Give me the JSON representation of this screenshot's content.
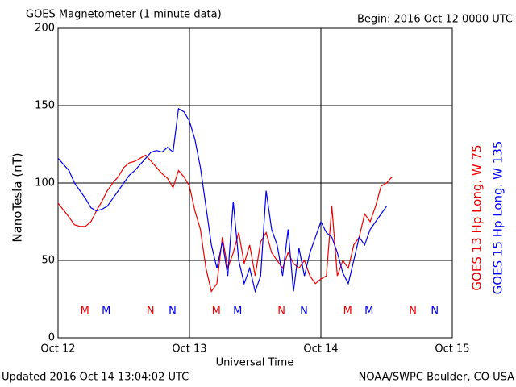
{
  "chart_data": {
    "type": "line",
    "title": "GOES Magnetometer (1 minute data)",
    "subtitle": "Begin:  2016 Oct 12 0000 UTC",
    "y_label": "NanoTesla (nT)",
    "x_label": "Universal Time",
    "footer_left": "Updated 2016 Oct 14 13:04:02 UTC",
    "footer_right": "NOAA/SWPC Boulder, CO USA",
    "xlim": [
      0,
      72
    ],
    "xticks": [
      {
        "value": 0,
        "label": "Oct 12"
      },
      {
        "value": 24,
        "label": "Oct 13"
      },
      {
        "value": 48,
        "label": "Oct 14"
      },
      {
        "value": 72,
        "label": "Oct 15"
      }
    ],
    "ylim": [
      0,
      200
    ],
    "yticks": [
      0,
      50,
      100,
      150,
      200
    ],
    "grid": true,
    "series": [
      {
        "name": "GOES 13 Hp  Long. W 75",
        "color": "#ee0000",
        "x": [
          0,
          2,
          3,
          4,
          5,
          6,
          7,
          8,
          9,
          10,
          11,
          12,
          13,
          14,
          15,
          16,
          17,
          18,
          19,
          20,
          21,
          22,
          23,
          24,
          25,
          26,
          27,
          28,
          29,
          30,
          31,
          32,
          33,
          34,
          35,
          36,
          37,
          38,
          39,
          40,
          41,
          42,
          43,
          44,
          45,
          46,
          47,
          48,
          49,
          50,
          51,
          52,
          53,
          54,
          55,
          56,
          57,
          58,
          59,
          60,
          61
        ],
        "values": [
          87,
          78,
          73,
          72,
          72,
          75,
          82,
          88,
          95,
          100,
          104,
          110,
          113,
          114,
          116,
          118,
          114,
          110,
          106,
          103,
          97,
          108,
          104,
          98,
          82,
          70,
          45,
          30,
          35,
          65,
          45,
          55,
          68,
          48,
          60,
          40,
          62,
          68,
          55,
          50,
          45,
          55,
          48,
          45,
          50,
          40,
          35,
          38,
          40,
          85,
          40,
          50,
          45,
          60,
          65,
          80,
          75,
          85,
          98,
          100,
          104
        ]
      },
      {
        "name": "GOES 15 Hp  Long. W 135",
        "color": "#0000ee",
        "x": [
          0,
          2,
          3,
          4,
          5,
          6,
          7,
          8,
          9,
          10,
          11,
          12,
          13,
          14,
          15,
          16,
          17,
          18,
          19,
          20,
          21,
          22,
          23,
          24,
          25,
          26,
          27,
          28,
          29,
          30,
          31,
          32,
          33,
          34,
          35,
          36,
          37,
          38,
          39,
          40,
          41,
          42,
          43,
          44,
          45,
          46,
          47,
          48,
          49,
          50,
          51,
          52,
          53,
          54,
          55,
          56,
          57,
          58,
          59,
          60
        ],
        "values": [
          116,
          108,
          100,
          95,
          90,
          84,
          82,
          83,
          85,
          90,
          95,
          100,
          105,
          108,
          112,
          116,
          120,
          121,
          120,
          123,
          120,
          148,
          146,
          140,
          128,
          110,
          85,
          60,
          45,
          62,
          40,
          88,
          50,
          35,
          45,
          30,
          40,
          95,
          70,
          60,
          40,
          70,
          30,
          58,
          40,
          55,
          65,
          75,
          68,
          65,
          55,
          42,
          35,
          50,
          65,
          60,
          70,
          75,
          80,
          85
        ]
      }
    ],
    "markers": [
      {
        "text": "M",
        "x": 4.9,
        "series": 0
      },
      {
        "text": "M",
        "x": 8.8,
        "series": 1
      },
      {
        "text": "N",
        "x": 16.9,
        "series": 0
      },
      {
        "text": "N",
        "x": 20.9,
        "series": 1
      },
      {
        "text": "M",
        "x": 28.9,
        "series": 0
      },
      {
        "text": "M",
        "x": 32.8,
        "series": 1
      },
      {
        "text": "N",
        "x": 40.8,
        "series": 0
      },
      {
        "text": "N",
        "x": 44.9,
        "series": 1
      },
      {
        "text": "M",
        "x": 52.9,
        "series": 0
      },
      {
        "text": "M",
        "x": 56.8,
        "series": 1
      },
      {
        "text": "N",
        "x": 64.8,
        "series": 0
      },
      {
        "text": "N",
        "x": 68.8,
        "series": 1
      }
    ]
  }
}
